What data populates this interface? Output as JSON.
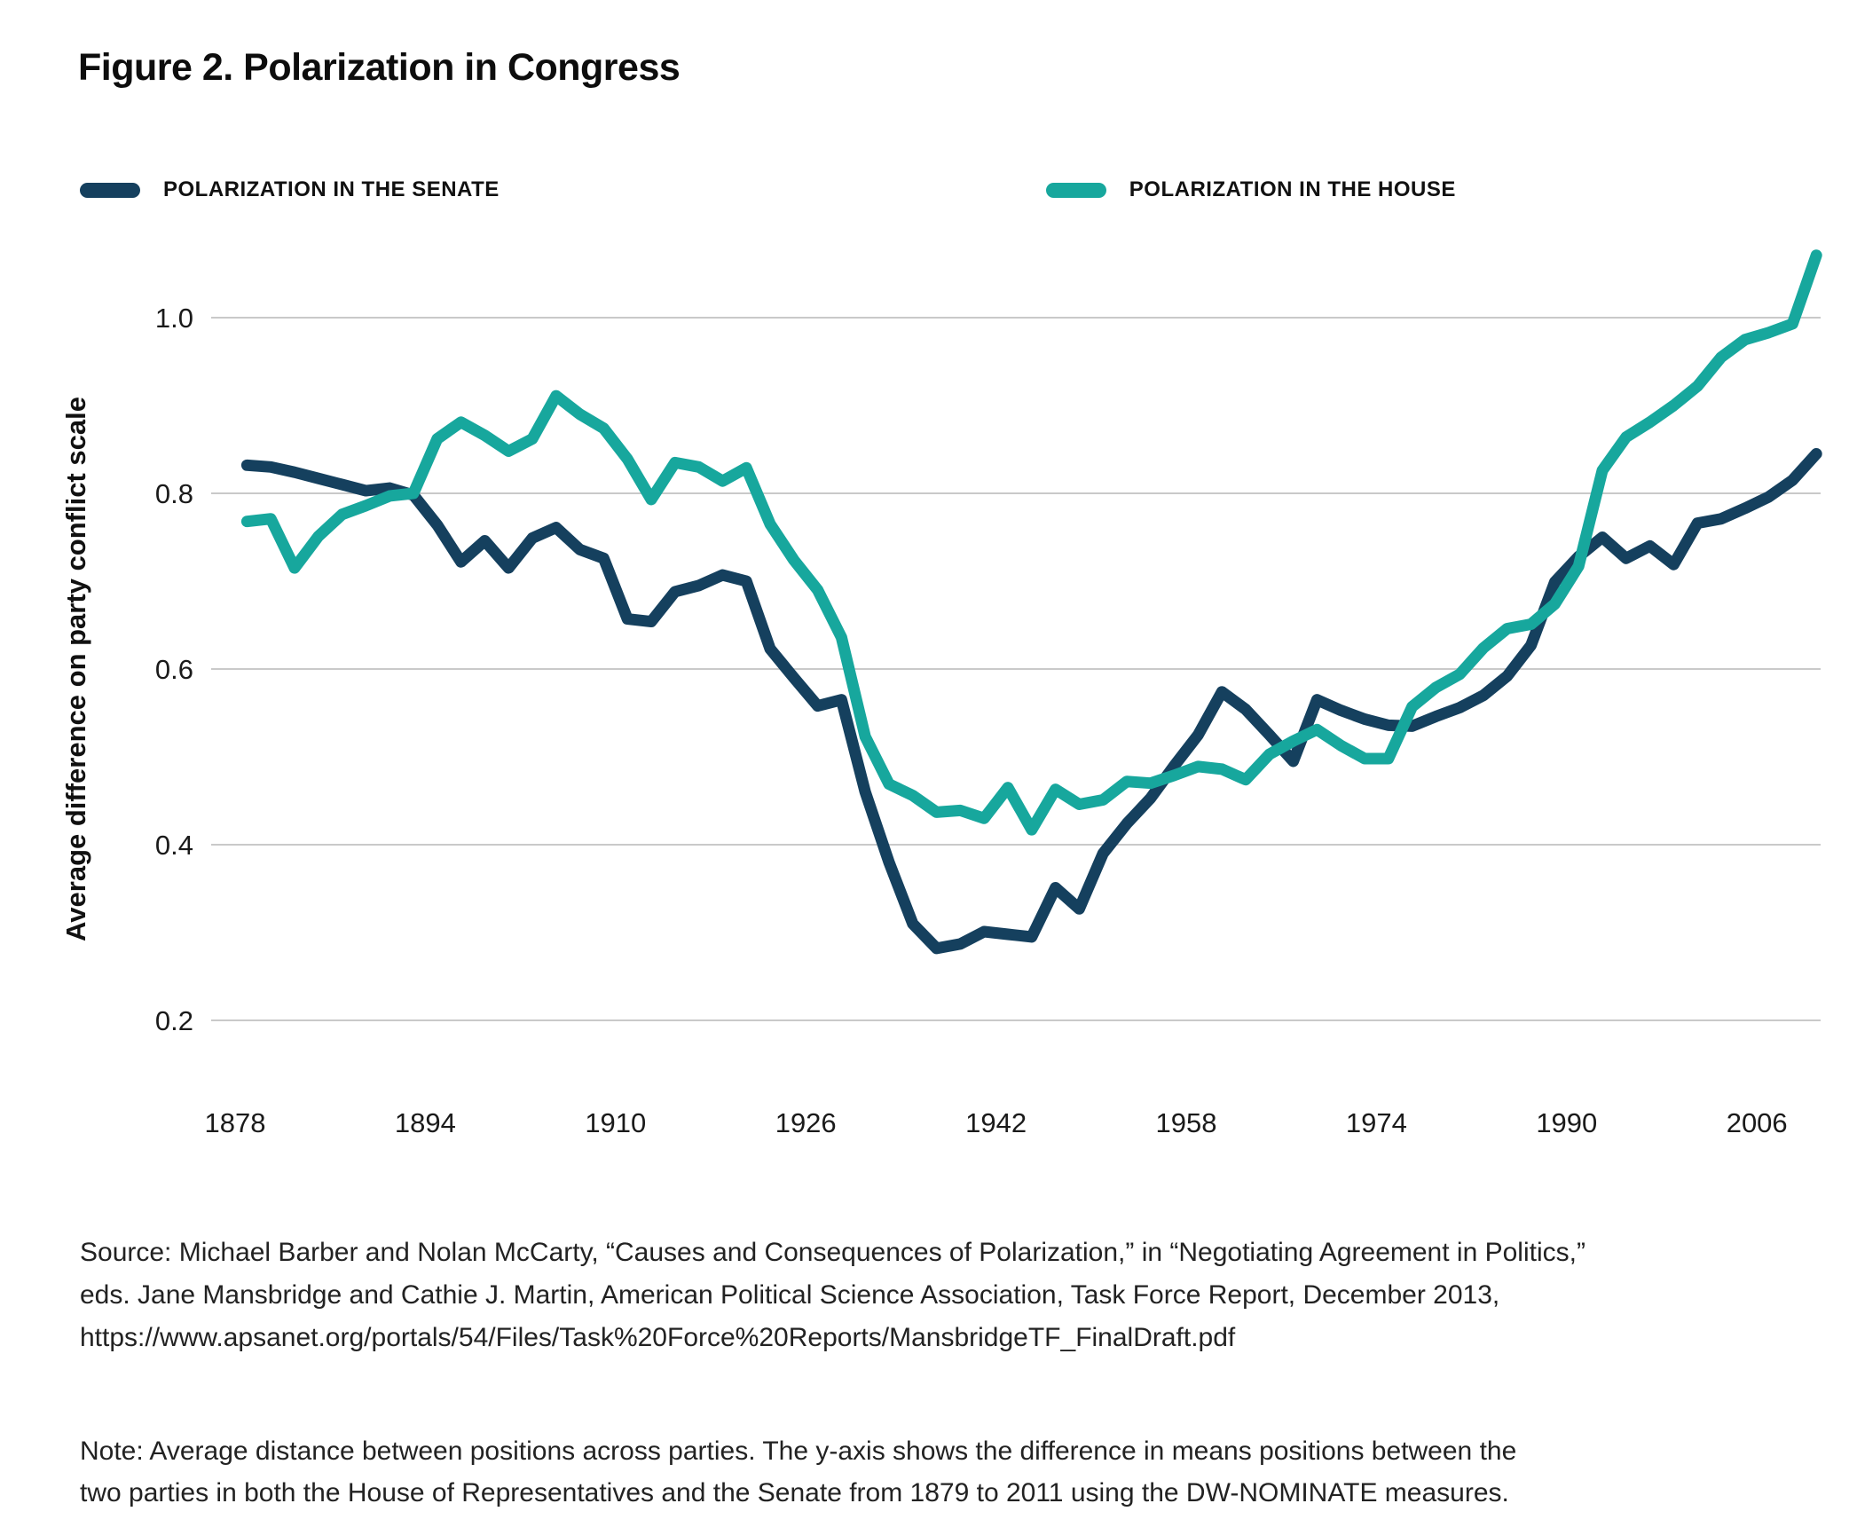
{
  "title": "Figure 2. Polarization in Congress",
  "legend": {
    "senate": {
      "label": "POLARIZATION IN THE SENATE",
      "color": "#15405e"
    },
    "house": {
      "label": "POLARIZATION IN THE HOUSE",
      "color": "#17a79d"
    }
  },
  "colors": {
    "senate_line": "#15405e",
    "house_line": "#17a79d",
    "grid": "#c9c9c9",
    "text": "#1a1a1a"
  },
  "chart_data": {
    "type": "line",
    "title": "Figure 2. Polarization in Congress",
    "xlabel": "",
    "ylabel": "Average difference on party conflict scale",
    "x_ticks": [
      1878,
      1894,
      1910,
      1926,
      1942,
      1958,
      1974,
      1990,
      2006
    ],
    "y_ticks": [
      1.0,
      0.8,
      0.6,
      0.4,
      0.2
    ],
    "ylim": [
      0.15,
      1.12
    ],
    "xlim": [
      1877,
      2013
    ],
    "grid": "horizontal",
    "legend_position": "top-left",
    "x": [
      1879,
      1881,
      1883,
      1885,
      1887,
      1889,
      1891,
      1893,
      1895,
      1897,
      1899,
      1901,
      1903,
      1905,
      1907,
      1909,
      1911,
      1913,
      1915,
      1917,
      1919,
      1921,
      1923,
      1925,
      1927,
      1929,
      1931,
      1933,
      1935,
      1937,
      1939,
      1941,
      1943,
      1945,
      1947,
      1949,
      1951,
      1953,
      1955,
      1957,
      1959,
      1961,
      1963,
      1965,
      1967,
      1969,
      1971,
      1973,
      1975,
      1977,
      1979,
      1981,
      1983,
      1985,
      1987,
      1989,
      1991,
      1993,
      1995,
      1997,
      1999,
      2001,
      2003,
      2005,
      2007,
      2009,
      2011
    ],
    "series": [
      {
        "name": "Polarization in the Senate",
        "color": "#15405e",
        "values": [
          0.832,
          0.83,
          0.824,
          0.817,
          0.81,
          0.803,
          0.806,
          0.798,
          0.764,
          0.722,
          0.746,
          0.715,
          0.749,
          0.761,
          0.736,
          0.726,
          0.657,
          0.654,
          0.688,
          0.695,
          0.707,
          0.7,
          0.623,
          0.59,
          0.558,
          0.565,
          0.46,
          0.38,
          0.31,
          0.282,
          0.287,
          0.301,
          0.298,
          0.295,
          0.351,
          0.327,
          0.39,
          0.424,
          0.453,
          0.49,
          0.525,
          0.574,
          0.554,
          0.525,
          0.495,
          0.565,
          0.553,
          0.543,
          0.536,
          0.535,
          0.546,
          0.556,
          0.57,
          0.592,
          0.627,
          0.699,
          0.728,
          0.75,
          0.726,
          0.74,
          0.719,
          0.766,
          0.771,
          0.783,
          0.796,
          0.815,
          0.845
        ]
      },
      {
        "name": "Polarization in the House",
        "color": "#17a79d",
        "values": [
          0.768,
          0.771,
          0.715,
          0.751,
          0.776,
          0.786,
          0.797,
          0.8,
          0.862,
          0.881,
          0.866,
          0.848,
          0.862,
          0.911,
          0.89,
          0.874,
          0.839,
          0.793,
          0.835,
          0.83,
          0.814,
          0.829,
          0.765,
          0.724,
          0.69,
          0.636,
          0.523,
          0.469,
          0.456,
          0.437,
          0.439,
          0.43,
          0.465,
          0.417,
          0.463,
          0.446,
          0.451,
          0.472,
          0.47,
          0.479,
          0.489,
          0.486,
          0.474,
          0.503,
          0.518,
          0.531,
          0.513,
          0.498,
          0.498,
          0.557,
          0.579,
          0.594,
          0.624,
          0.646,
          0.651,
          0.674,
          0.717,
          0.826,
          0.864,
          0.881,
          0.9,
          0.922,
          0.955,
          0.975,
          0.983,
          0.993,
          1.071
        ]
      }
    ]
  },
  "source": {
    "lines": [
      "Source: Michael Barber and Nolan McCarty, “Causes and Consequences of Polarization,” in “Negotiating Agreement in Politics,”",
      "eds. Jane Mansbridge and Cathie J. Martin, American Political Science Association, Task Force Report, December 2013,",
      "https://www.apsanet.org/portals/54/Files/Task%20Force%20Reports/MansbridgeTF_FinalDraft.pdf"
    ]
  },
  "note": {
    "lines": [
      "Note: Average distance between positions across parties. The y-axis shows the difference in means positions between the",
      "two parties in both the House of Representatives and the Senate from 1879 to 2011 using the DW-NOMINATE measures."
    ]
  }
}
